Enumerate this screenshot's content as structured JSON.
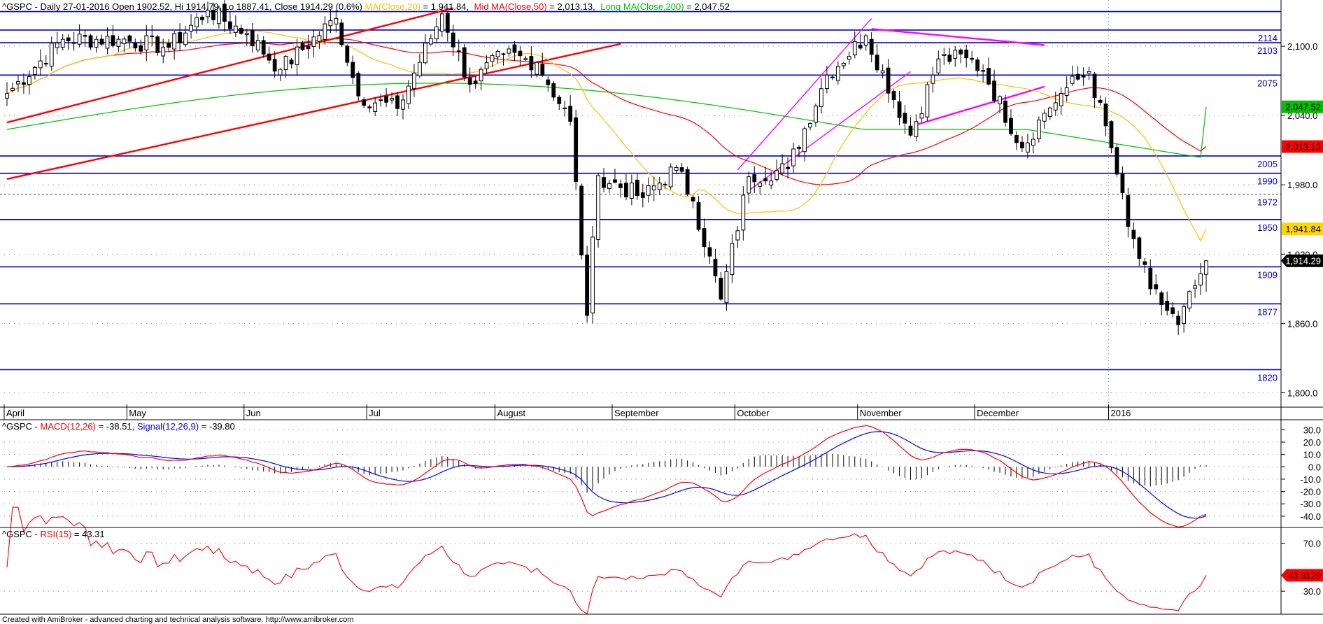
{
  "footer": "Created with AmiBroker - advanced charting and technical analysis software. http://www.amibroker.com",
  "colors": {
    "ma20": "#ffc000",
    "ma50": "#ff0000",
    "ma200": "#00c000",
    "levels": "#0000cc",
    "trend_red": "#ff0000",
    "trend_magenta": "#ff00ff",
    "macd": "#ff0000",
    "signal": "#0000ff",
    "rsi": "#ff0000"
  },
  "price_panel": {
    "header": {
      "symbol_line": "^GSPC - Daily 27-01-2016 Open 1902.52, Hi 1914.79, Lo 1887.41, Close 1914.29 (0.6%)",
      "ma20_label": "MA(Close,20)",
      "ma20_value": " = 1,941.84,",
      "ma50_label": "Mid MA(Close,50)",
      "ma50_value": " = 2,013.13,",
      "ma200_label": "Long MA(Close,200)",
      "ma200_value": " = 2,047.52"
    },
    "y_ticks": [
      "2,100.0",
      "2,040.0",
      "1,980.0",
      "1,920.0",
      "1,860.0",
      "1,800.0"
    ],
    "level_labels": [
      "2114",
      "2103",
      "2075",
      "2005",
      "1990",
      "1972",
      "1950",
      "1909",
      "1877",
      "1820"
    ],
    "badges": [
      {
        "text": "2,047.52",
        "bg": "#00c000",
        "fg": "#000000"
      },
      {
        "text": "2,013.13",
        "bg": "#ff0000",
        "fg": "#000000"
      },
      {
        "text": "1,941.84",
        "bg": "#ffd700",
        "fg": "#000000"
      },
      {
        "text": "1,914.29",
        "bg": "#000000",
        "fg": "#ffffff"
      }
    ],
    "months": [
      "April",
      "May",
      "Jun",
      "Jul",
      "August",
      "September",
      "October",
      "November",
      "December",
      "2016"
    ]
  },
  "macd_panel": {
    "header_prefix": "^GSPC - ",
    "macd_label": "MACD(12,26)",
    "macd_value": " = -38.51, ",
    "signal_label": "Signal(12,26,9)",
    "signal_value": " = -39.80",
    "y_ticks": [
      "30.0",
      "20.0",
      "10.0",
      "0.0",
      "-10.0",
      "-20.0",
      "-30.0",
      "-40.0"
    ]
  },
  "rsi_panel": {
    "header_prefix": "^GSPC - ",
    "rsi_label": "RSI(15)",
    "rsi_value": " = 43.31",
    "y_ticks": [
      "70.0",
      "30.0"
    ],
    "badge": {
      "text": "43.3129",
      "bg": "#ff0000",
      "fg": "#000000"
    }
  },
  "chart_data": [
    {
      "type": "candlestick",
      "title": "^GSPC - Daily 27-01-2016",
      "range_start": "2015-04-01",
      "range_end": "2016-01-27",
      "last_bar": {
        "date": "2016-01-27",
        "open": 1902.52,
        "high": 1914.79,
        "low": 1887.41,
        "close": 1914.29,
        "change_pct": 0.6
      },
      "ylim": [
        1790,
        2140
      ],
      "series": [
        {
          "name": "MA(Close,20)",
          "last": 1941.84
        },
        {
          "name": "Mid MA(Close,50)",
          "last": 2013.13
        },
        {
          "name": "Long MA(Close,200)",
          "last": 2047.52
        }
      ],
      "horizontal_levels": [
        2114,
        2103,
        2075,
        2005,
        1990,
        1972,
        1950,
        1909,
        1877,
        1820
      ],
      "x_labels": [
        "April",
        "May",
        "Jun",
        "Jul",
        "August",
        "September",
        "October",
        "November",
        "December",
        "2016"
      ],
      "anchor_closes": [
        [
          "2015-04-01",
          2059
        ],
        [
          "2015-04-15",
          2106
        ],
        [
          "2015-04-29",
          2106
        ],
        [
          "2015-05-12",
          2099
        ],
        [
          "2015-05-21",
          2131
        ],
        [
          "2015-06-01",
          2111
        ],
        [
          "2015-06-09",
          2080
        ],
        [
          "2015-06-23",
          2124
        ],
        [
          "2015-06-29",
          2057
        ],
        [
          "2015-07-08",
          2046
        ],
        [
          "2015-07-20",
          2128
        ],
        [
          "2015-07-27",
          2067
        ],
        [
          "2015-08-04",
          2093
        ],
        [
          "2015-08-12",
          2086
        ],
        [
          "2015-08-20",
          2035
        ],
        [
          "2015-08-25",
          1867
        ],
        [
          "2015-08-27",
          1988
        ],
        [
          "2015-09-08",
          1969
        ],
        [
          "2015-09-16",
          1995
        ],
        [
          "2015-09-21",
          1966
        ],
        [
          "2015-09-28",
          1881
        ],
        [
          "2015-10-05",
          1987
        ],
        [
          "2015-10-14",
          1994
        ],
        [
          "2015-10-23",
          2075
        ],
        [
          "2015-11-03",
          2109
        ],
        [
          "2015-11-13",
          2023
        ],
        [
          "2015-11-20",
          2089
        ],
        [
          "2015-11-27",
          2090
        ],
        [
          "2015-12-02",
          2079
        ],
        [
          "2015-12-11",
          2012
        ],
        [
          "2015-12-17",
          2042
        ],
        [
          "2015-12-23",
          2064
        ],
        [
          "2015-12-29",
          2078
        ],
        [
          "2016-01-04",
          2012
        ],
        [
          "2016-01-07",
          1944
        ],
        [
          "2016-01-13",
          1890
        ],
        [
          "2016-01-20",
          1859
        ],
        [
          "2016-01-26",
          1903
        ],
        [
          "2016-01-27",
          1914.29
        ]
      ]
    },
    {
      "type": "line",
      "title": "MACD(12,26)",
      "series": [
        {
          "name": "MACD(12,26)",
          "last": -38.51
        },
        {
          "name": "Signal(12,26,9)",
          "last": -39.8
        }
      ],
      "ylim": [
        -48,
        37
      ]
    },
    {
      "type": "line",
      "title": "RSI(15)",
      "series": [
        {
          "name": "RSI(15)",
          "last": 43.31
        }
      ],
      "ylim": [
        12,
        82
      ]
    }
  ]
}
